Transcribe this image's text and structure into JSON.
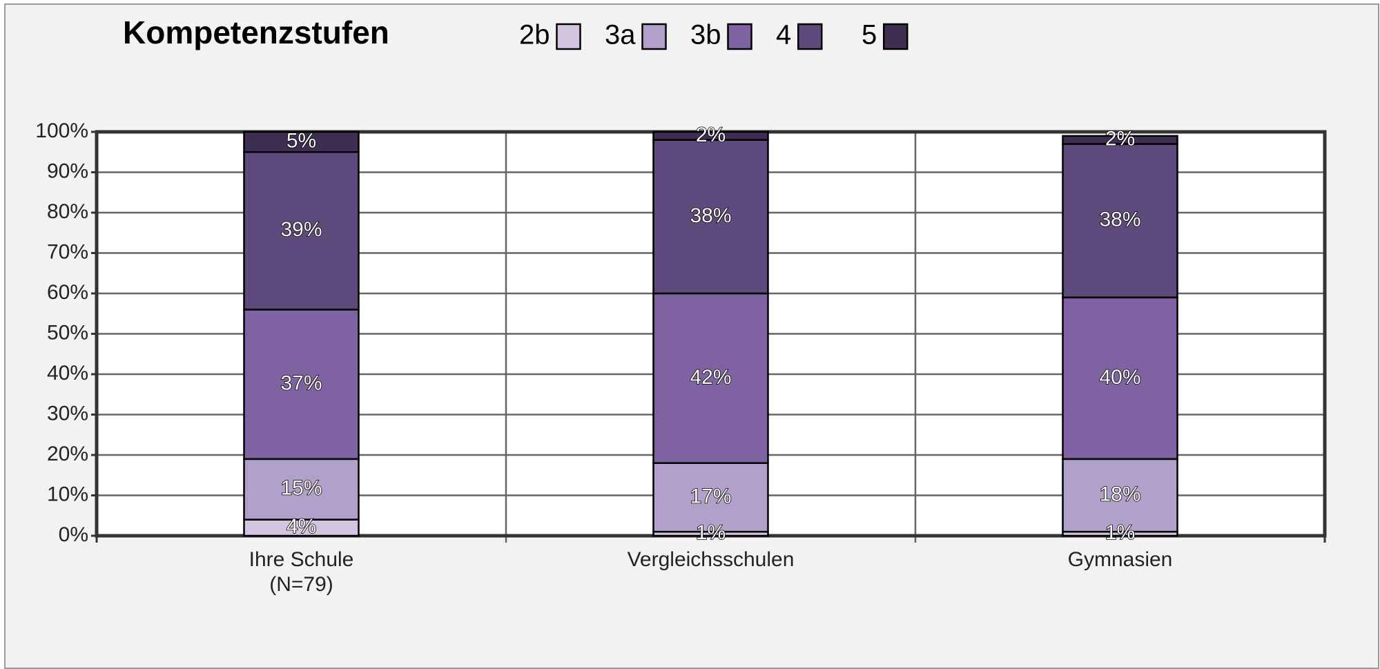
{
  "chart_data": {
    "type": "stacked_bar",
    "title": "Kompetenzstufen",
    "categories": [
      "Ihre Schule\n(N=79)",
      "Vergleichsschulen",
      "Gymnasien"
    ],
    "series": [
      {
        "name": "2b",
        "color": "#d3c4e0",
        "values": [
          4,
          1,
          1
        ],
        "value_labels": [
          "4%",
          "1%",
          "1%"
        ]
      },
      {
        "name": "3a",
        "color": "#b1a1ca",
        "values": [
          15,
          17,
          18
        ],
        "value_labels": [
          "15%",
          "17%",
          "18%"
        ]
      },
      {
        "name": "3b",
        "color": "#7f62a1",
        "values": [
          37,
          42,
          40
        ],
        "value_labels": [
          "37%",
          "42%",
          "40%"
        ]
      },
      {
        "name": "4",
        "color": "#5e4a7c",
        "values": [
          39,
          38,
          38
        ],
        "value_labels": [
          "39%",
          "38%",
          "38%"
        ]
      },
      {
        "name": "5",
        "color": "#3d2e52",
        "values": [
          5,
          2,
          2
        ],
        "value_labels": [
          "5%",
          "2%",
          "2%"
        ]
      }
    ],
    "ylim": [
      0,
      100
    ],
    "yticks": [
      {
        "value": 0,
        "label": "0%"
      },
      {
        "value": 10,
        "label": "10%"
      },
      {
        "value": 20,
        "label": "20%"
      },
      {
        "value": 30,
        "label": "30%"
      },
      {
        "value": 40,
        "label": "40%"
      },
      {
        "value": 50,
        "label": "50%"
      },
      {
        "value": 60,
        "label": "60%"
      },
      {
        "value": 70,
        "label": "70%"
      },
      {
        "value": 80,
        "label": "80%"
      },
      {
        "value": 90,
        "label": "90%"
      },
      {
        "value": 100,
        "label": "100%"
      }
    ],
    "grid": true
  }
}
